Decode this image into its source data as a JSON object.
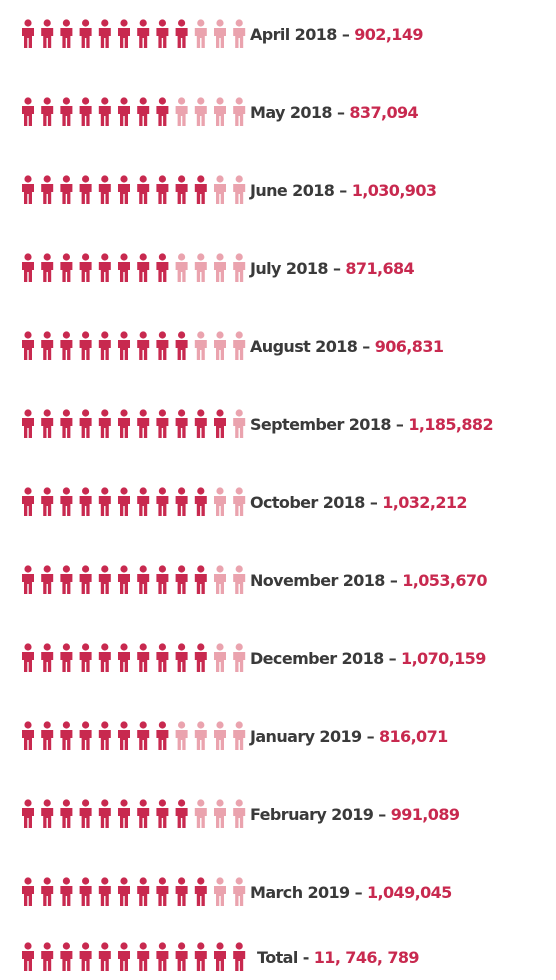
{
  "chart_data": {
    "type": "pictogram",
    "categories": [
      "April 2018",
      "May 2018",
      "June 2018",
      "July 2018",
      "August 2018",
      "September 2018",
      "October 2018",
      "November 2018",
      "December 2018",
      "January 2019",
      "February 2019",
      "March 2019"
    ],
    "separator": "–",
    "values": [
      902149,
      837094,
      1030903,
      871684,
      906831,
      1185882,
      1032212,
      1053670,
      1070159,
      816071,
      991089,
      1049045
    ],
    "value_labels": [
      "902,149",
      "837,094",
      "1,030,903",
      "871,684",
      "906,831",
      "1,185,882",
      "1,032,212",
      "1,053,670",
      "1,070,159",
      "816,071",
      "991,089",
      "1,049,045"
    ],
    "icon_value": 100000,
    "icons_per_row": 12,
    "color": "#c8294f",
    "empty_color": "#eaa3ae",
    "total": {
      "label": "Total",
      "separator": "-",
      "value": 11746789,
      "value_label": "11, 746, 789"
    }
  }
}
